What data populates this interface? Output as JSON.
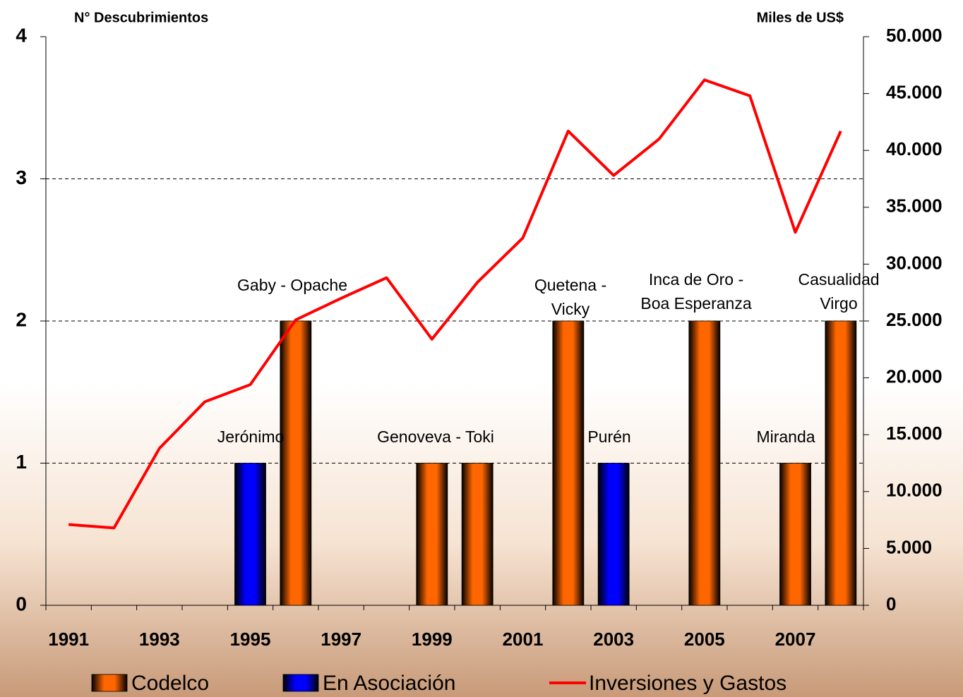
{
  "chart_data": {
    "type": "bar",
    "y_label": "N° Descubrimientos",
    "y2_label": "Miles de US$",
    "categories": [
      "1991",
      null,
      "1993",
      null,
      "1995",
      null,
      "1997",
      null,
      "1999",
      null,
      "2001",
      null,
      "2003",
      null,
      "2005",
      null,
      "2007",
      null
    ],
    "series": [
      {
        "name": "Codelco",
        "type": "bar",
        "color": "#ff6600",
        "values": [
          0,
          0,
          0,
          0,
          0,
          2,
          0,
          0,
          1,
          1,
          0,
          2,
          0,
          0,
          2,
          0,
          1,
          2
        ]
      },
      {
        "name": "En Asociación",
        "type": "bar",
        "color": "#0000ff",
        "values": [
          0,
          0,
          0,
          0,
          1,
          0,
          0,
          0,
          0,
          0,
          0,
          0,
          1,
          0,
          0,
          0,
          0,
          0
        ]
      },
      {
        "name": "Inversiones y Gastos",
        "type": "line",
        "axis": "y2",
        "color": "#ff0000",
        "values": [
          7100,
          6800,
          13800,
          17900,
          19400,
          25100,
          27000,
          28800,
          23400,
          28400,
          32300,
          41700,
          37800,
          41000,
          46200,
          44800,
          32800,
          41700
        ]
      }
    ],
    "annotations": [
      [
        "Gaby - Opache"
      ],
      [
        "Jerónimo"
      ],
      [
        "Genoveva - Toki"
      ],
      [
        "Quetena -",
        "Vicky"
      ],
      [
        "Purén"
      ],
      [
        "Inca de Oro -",
        "Boa Esperanza"
      ],
      [
        "Miranda"
      ],
      [
        "Casualidad",
        "Virgo"
      ]
    ],
    "ylim": [
      0,
      4
    ],
    "yticks": [
      0,
      1,
      2,
      3,
      4
    ],
    "y2lim": [
      0,
      50000
    ],
    "y2ticks": [
      0,
      {
        "value": 5000,
        "label": "5.000"
      },
      {
        "value": 10000,
        "label": "10.000"
      },
      {
        "value": 15000,
        "label": "15.000"
      },
      {
        "value": 20000,
        "label": "20.000"
      },
      {
        "value": 25000,
        "label": "25.000"
      },
      {
        "value": 30000,
        "label": "30.000"
      },
      {
        "value": 35000,
        "label": "35.000"
      },
      {
        "value": 40000,
        "label": "40.000"
      },
      {
        "value": 45000,
        "label": "45.000"
      },
      {
        "value": 50000,
        "label": "50.000"
      }
    ],
    "grid": true,
    "legend": "bottom"
  }
}
